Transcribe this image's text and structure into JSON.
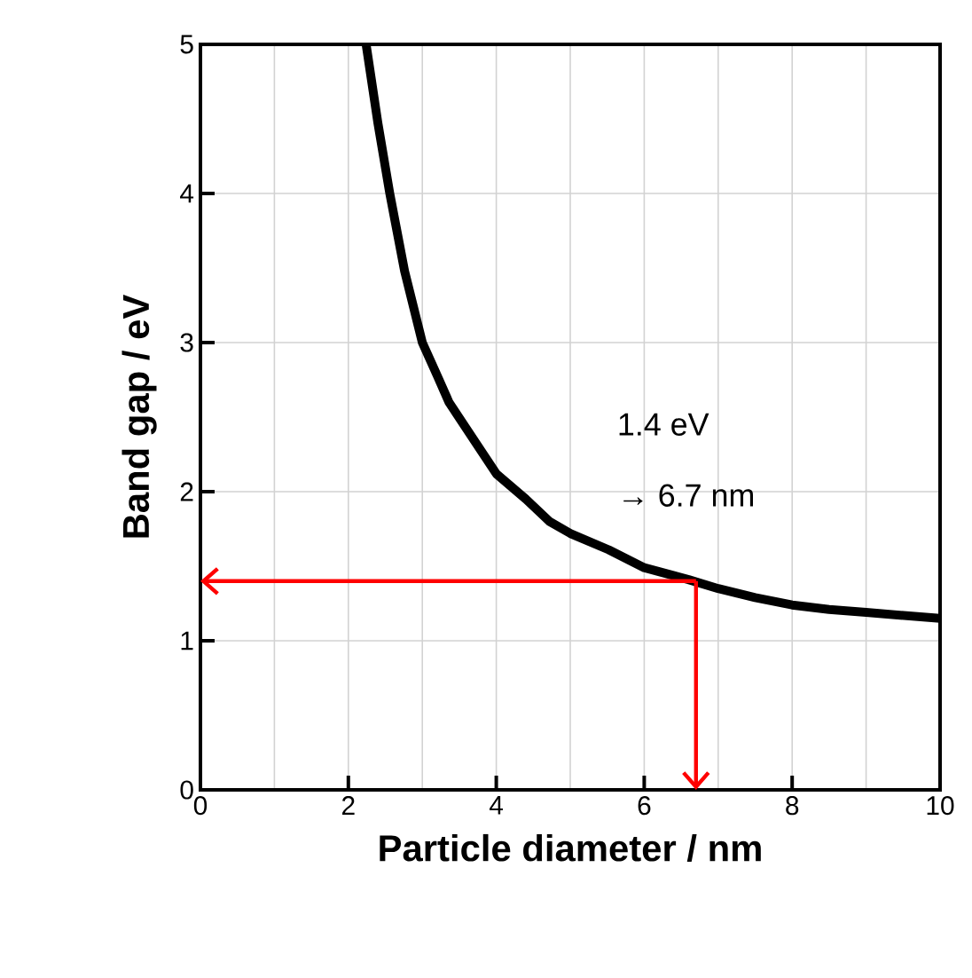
{
  "chart_data": {
    "type": "line",
    "xlabel": "Particle diameter / nm",
    "ylabel": "Band gap / eV",
    "x": [
      2.24,
      2.4,
      2.56,
      2.76,
      3.0,
      3.2,
      3.36,
      3.6,
      4.0,
      4.4,
      4.72,
      5.0,
      5.52,
      6.0,
      6.6,
      7.0,
      7.5,
      8.0,
      8.5,
      9.0,
      10.0
    ],
    "series": [
      {
        "color": "#000000",
        "values": [
          5.0,
          4.47,
          4.0,
          3.48,
          3.0,
          2.78,
          2.6,
          2.42,
          2.12,
          1.95,
          1.8,
          1.72,
          1.61,
          1.49,
          1.41,
          1.35,
          1.29,
          1.24,
          1.21,
          1.19,
          1.15
        ]
      }
    ],
    "ref_lines": [
      {
        "axis": "y",
        "value": 1.4,
        "color": "#ff0000"
      },
      {
        "axis": "x",
        "value": 6.7,
        "color": "#ff0000"
      }
    ],
    "xlim": [
      0,
      10
    ],
    "ylim": [
      0,
      5
    ],
    "xticks": [
      0,
      2,
      4,
      6,
      8,
      10
    ],
    "yticks": [
      0,
      1,
      2,
      3,
      4,
      5
    ],
    "grid": true,
    "marker": "none",
    "line_style": "solid",
    "annotations": [
      "1.4 eV",
      "→ 6.7 nm"
    ]
  }
}
